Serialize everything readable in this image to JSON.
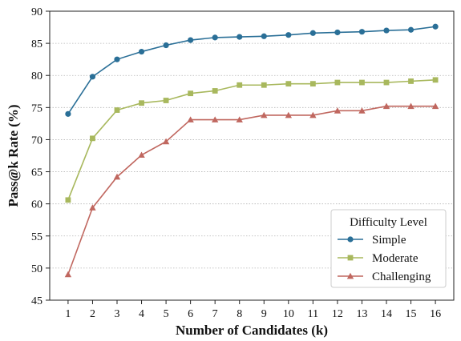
{
  "chart_data": {
    "type": "line",
    "xlabel": "Number of Candidates (k)",
    "ylabel": "Pass@k Rate (%)",
    "ylim": [
      45,
      90
    ],
    "yticks": [
      45,
      50,
      55,
      60,
      65,
      70,
      75,
      80,
      85,
      90
    ],
    "x": [
      1,
      2,
      3,
      4,
      5,
      6,
      7,
      8,
      9,
      10,
      11,
      12,
      13,
      14,
      15,
      16
    ],
    "grid": "horizontal dotted",
    "legend": {
      "title": "Difficulty Level",
      "placement": "lower-right"
    },
    "series": [
      {
        "name": "Simple",
        "color": "#2a6f97",
        "marker": "circle",
        "values": [
          74.0,
          79.8,
          82.5,
          83.7,
          84.7,
          85.5,
          85.9,
          86.0,
          86.1,
          86.3,
          86.6,
          86.7,
          86.8,
          87.0,
          87.1,
          87.6
        ]
      },
      {
        "name": "Moderate",
        "color": "#a8b85d",
        "marker": "square",
        "values": [
          60.6,
          70.2,
          74.6,
          75.7,
          76.1,
          77.2,
          77.6,
          78.5,
          78.5,
          78.7,
          78.7,
          78.9,
          78.9,
          78.9,
          79.1,
          79.3
        ]
      },
      {
        "name": "Challenging",
        "color": "#c0675f",
        "marker": "triangle",
        "values": [
          49.0,
          59.4,
          64.2,
          67.6,
          69.7,
          73.1,
          73.1,
          73.1,
          73.8,
          73.8,
          73.8,
          74.5,
          74.5,
          75.2,
          75.2,
          75.2
        ]
      }
    ]
  }
}
